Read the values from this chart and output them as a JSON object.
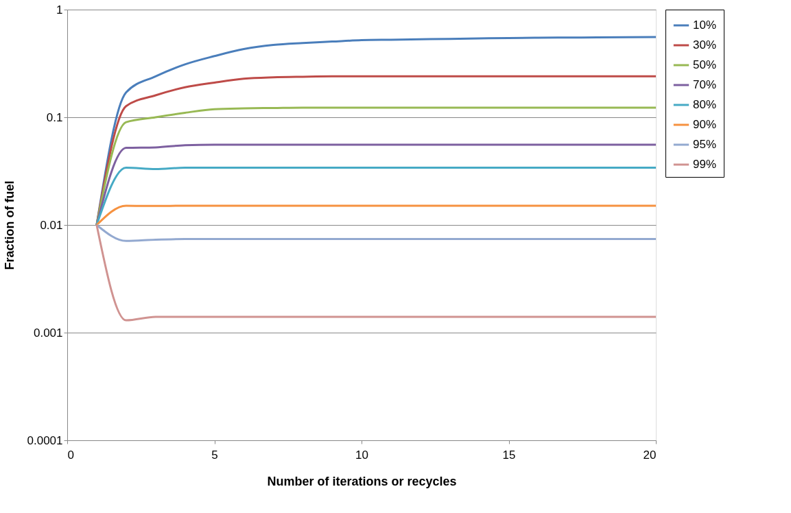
{
  "chart_data": {
    "type": "line",
    "xlabel": "Number of iterations or recycles",
    "ylabel": "Fraction of fuel",
    "x": [
      1,
      2,
      3,
      4,
      5,
      6,
      7,
      8,
      9,
      10,
      11,
      12,
      13,
      14,
      15,
      16,
      17,
      18,
      19,
      20
    ],
    "xlim": [
      0,
      20
    ],
    "xticks": [
      0,
      5,
      10,
      15,
      20
    ],
    "ylim": [
      0.0001,
      1
    ],
    "yticks": [
      0.0001,
      0.001,
      0.01,
      0.1,
      1
    ],
    "log": "y",
    "grid": "y",
    "legend": "right",
    "line_style": "solid",
    "marker": "none",
    "series": [
      {
        "name": "10%",
        "color": "#4a7ebb",
        "values": [
          0.01,
          0.17,
          0.24,
          0.31,
          0.37,
          0.43,
          0.47,
          0.49,
          0.505,
          0.52,
          0.525,
          0.53,
          0.535,
          0.54,
          0.545,
          0.548,
          0.55,
          0.552,
          0.554,
          0.556
        ]
      },
      {
        "name": "30%",
        "color": "#be4b48",
        "values": [
          0.01,
          0.127,
          0.16,
          0.19,
          0.21,
          0.228,
          0.235,
          0.238,
          0.24,
          0.24,
          0.24,
          0.24,
          0.24,
          0.24,
          0.24,
          0.24,
          0.24,
          0.24,
          0.24,
          0.24
        ]
      },
      {
        "name": "50%",
        "color": "#98b954",
        "values": [
          0.01,
          0.09,
          0.1,
          0.11,
          0.119,
          0.121,
          0.122,
          0.123,
          0.123,
          0.123,
          0.123,
          0.123,
          0.123,
          0.123,
          0.123,
          0.123,
          0.123,
          0.123,
          0.123,
          0.123
        ]
      },
      {
        "name": "70%",
        "color": "#7d60a0",
        "values": [
          0.01,
          0.052,
          0.0525,
          0.055,
          0.0556,
          0.0556,
          0.0556,
          0.0556,
          0.0556,
          0.0556,
          0.0556,
          0.0556,
          0.0556,
          0.0556,
          0.0556,
          0.0556,
          0.0556,
          0.0556,
          0.0556,
          0.0556
        ]
      },
      {
        "name": "80%",
        "color": "#46aac5",
        "values": [
          0.01,
          0.034,
          0.033,
          0.034,
          0.034,
          0.034,
          0.034,
          0.034,
          0.034,
          0.034,
          0.034,
          0.034,
          0.034,
          0.034,
          0.034,
          0.034,
          0.034,
          0.034,
          0.034,
          0.034
        ]
      },
      {
        "name": "90%",
        "color": "#f69240",
        "values": [
          0.01,
          0.0151,
          0.015,
          0.0151,
          0.0151,
          0.0151,
          0.0151,
          0.0151,
          0.0151,
          0.0151,
          0.0151,
          0.0151,
          0.0151,
          0.0151,
          0.0151,
          0.0151,
          0.0151,
          0.0151,
          0.0151,
          0.0151
        ]
      },
      {
        "name": "95%",
        "color": "#93a9d0",
        "values": [
          0.01,
          0.0071,
          0.0073,
          0.0074,
          0.0074,
          0.0074,
          0.0074,
          0.0074,
          0.0074,
          0.0074,
          0.0074,
          0.0074,
          0.0074,
          0.0074,
          0.0074,
          0.0074,
          0.0074,
          0.0074,
          0.0074,
          0.0074
        ]
      },
      {
        "name": "99%",
        "color": "#d09391",
        "values": [
          0.01,
          0.0013,
          0.0014,
          0.0014,
          0.0014,
          0.0014,
          0.0014,
          0.0014,
          0.0014,
          0.0014,
          0.0014,
          0.0014,
          0.0014,
          0.0014,
          0.0014,
          0.0014,
          0.0014,
          0.0014,
          0.0014,
          0.0014
        ]
      }
    ]
  }
}
